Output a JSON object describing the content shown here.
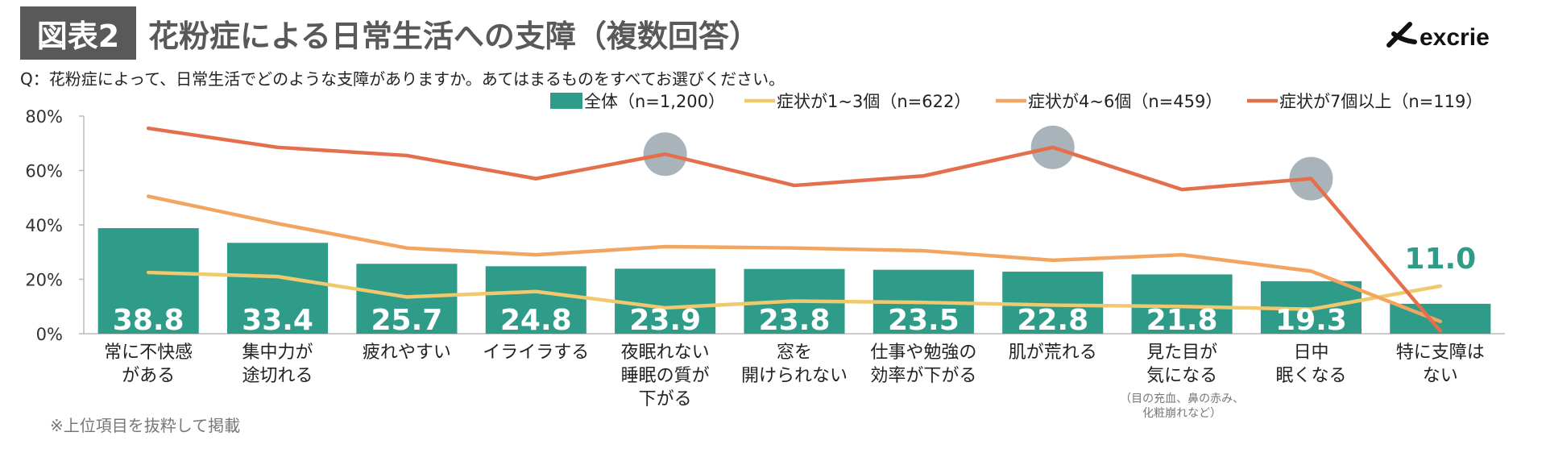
{
  "header": {
    "badge": "図表2",
    "title": "花粉症による日常生活への支障（複数回答）",
    "logo_text": "excrie"
  },
  "question": "Q：花粉症によって、日常生活でどのような支障がありますか。あてはまるものをすべてお選びください。",
  "footnote": "※上位項目を抜粋して掲載",
  "colors": {
    "bar": "#2e9c89",
    "line_1_3": "#f0c96e",
    "line_4_6": "#f2a561",
    "line_7plus": "#e36f4c",
    "highlight": "#9aa6ae",
    "badge": "#595959"
  },
  "chart_data": {
    "type": "bar",
    "title": "花粉症による日常生活への支障（複数回答）",
    "xlabel": "",
    "ylabel": "",
    "ylim": [
      0,
      80
    ],
    "yticks": [
      "0%",
      "20%",
      "40%",
      "60%",
      "80%"
    ],
    "grid": false,
    "legend_position": "top-right",
    "categories": [
      [
        "常に不快感",
        "がある"
      ],
      [
        "集中力が",
        "途切れる"
      ],
      [
        "疲れやすい"
      ],
      [
        "イライラする"
      ],
      [
        "夜眠れない",
        "睡眠の質が",
        "下がる"
      ],
      [
        "窓を",
        "開けられない"
      ],
      [
        "仕事や勉強の",
        "効率が下がる"
      ],
      [
        "肌が荒れる"
      ],
      [
        "見た目が",
        "気になる"
      ],
      [
        "日中",
        "眠くなる"
      ],
      [
        "特に支障は",
        "ない"
      ]
    ],
    "category_notes": [
      null,
      null,
      null,
      null,
      null,
      null,
      null,
      null,
      [
        "（目の充血、鼻の赤み、",
        "化粧崩れなど）"
      ],
      null,
      null
    ],
    "series": [
      {
        "name": "全体（n=1,200）",
        "kind": "bar",
        "values": [
          38.8,
          33.4,
          25.7,
          24.8,
          23.9,
          23.8,
          23.5,
          22.8,
          21.8,
          19.3,
          11.0
        ],
        "labels": [
          "38.8",
          "33.4",
          "25.7",
          "24.8",
          "23.9",
          "23.8",
          "23.5",
          "22.8",
          "21.8",
          "19.3",
          "11.0"
        ]
      },
      {
        "name": "症状が1~3個（n=622）",
        "kind": "line",
        "values": [
          22.5,
          21,
          13.5,
          15.5,
          9.5,
          12,
          11.5,
          10.5,
          10,
          9,
          17.5
        ]
      },
      {
        "name": "症状が4~6個（n=459）",
        "kind": "line",
        "values": [
          50.5,
          40.5,
          31.5,
          29,
          32,
          31.5,
          30.5,
          27,
          29,
          23,
          4.5
        ]
      },
      {
        "name": "症状が7個以上（n=119）",
        "kind": "line",
        "values": [
          75.5,
          68.5,
          65.5,
          57,
          66,
          54.5,
          58,
          68.5,
          53,
          57,
          1
        ]
      }
    ],
    "highlights": [
      4,
      7,
      9
    ]
  }
}
